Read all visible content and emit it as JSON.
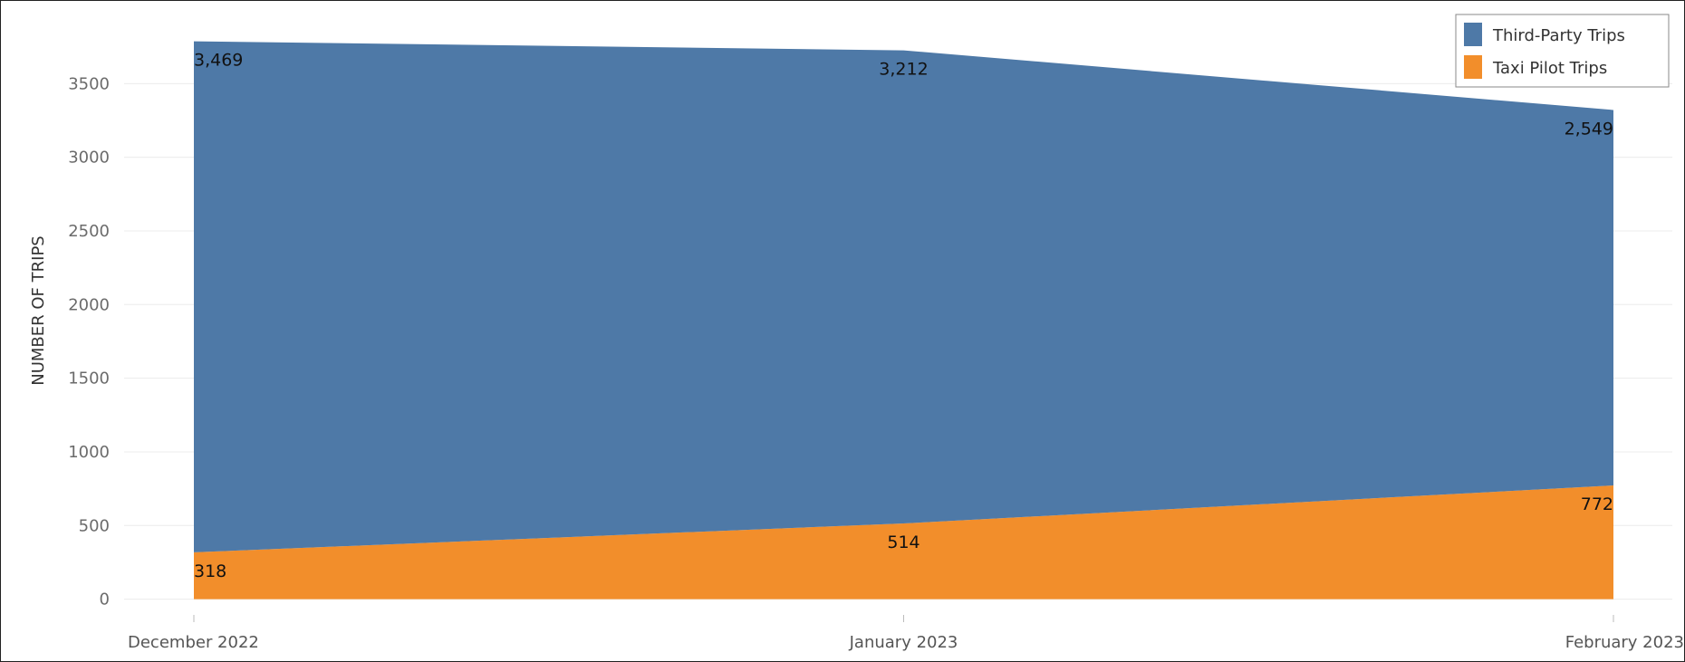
{
  "chart_data": {
    "type": "area",
    "stacked": true,
    "categories": [
      "December 2022",
      "January 2023",
      "February 2023"
    ],
    "series": [
      {
        "name": "Taxi Pilot Trips",
        "values": [
          318,
          514,
          772
        ],
        "color": "#F28E2B"
      },
      {
        "name": "Third-Party Trips",
        "values": [
          3469,
          3212,
          2549
        ],
        "color": "#4E79A7"
      }
    ],
    "data_labels": {
      "Taxi Pilot Trips": [
        "318",
        "514",
        "772"
      ],
      "Third-Party Trips": [
        "3,469",
        "3,212",
        "2,549"
      ]
    },
    "ylabel": "NUMBER OF TRIPS",
    "yticks": [
      0,
      500,
      1000,
      1500,
      2000,
      2500,
      3000,
      3500
    ],
    "ylim": [
      -70,
      4000
    ],
    "grid": true,
    "legend": {
      "placement": "top-right",
      "items": [
        "Third-Party Trips",
        "Taxi Pilot Trips"
      ]
    }
  }
}
